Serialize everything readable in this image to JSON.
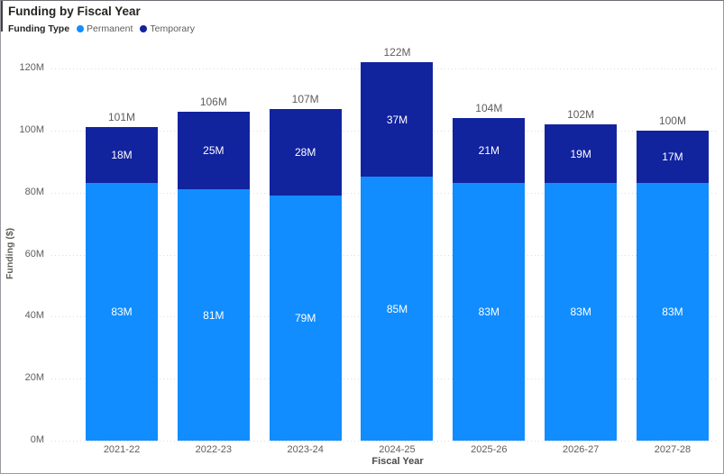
{
  "header": {
    "title": "Funding by Fiscal Year"
  },
  "legend": {
    "label": "Funding Type",
    "items": [
      {
        "name": "Permanent",
        "color": "#118DFF"
      },
      {
        "name": "Temporary",
        "color": "#12239E"
      }
    ]
  },
  "chart_data": {
    "type": "bar",
    "stacked": true,
    "title": "Funding by Fiscal Year",
    "xlabel": "Fiscal Year",
    "ylabel": "Funding ($)",
    "categories": [
      "2021-22",
      "2022-23",
      "2023-24",
      "2024-25",
      "2025-26",
      "2026-27",
      "2027-28"
    ],
    "series": [
      {
        "name": "Permanent",
        "color": "#118DFF",
        "values": [
          83,
          81,
          79,
          85,
          83,
          83,
          83
        ],
        "labels": [
          "83M",
          "81M",
          "79M",
          "85M",
          "83M",
          "83M",
          "83M"
        ]
      },
      {
        "name": "Temporary",
        "color": "#12239E",
        "values": [
          18,
          25,
          28,
          37,
          21,
          19,
          17
        ],
        "labels": [
          "18M",
          "25M",
          "28M",
          "37M",
          "21M",
          "19M",
          "17M"
        ]
      }
    ],
    "totals": [
      101,
      106,
      107,
      122,
      104,
      102,
      100
    ],
    "total_labels": [
      "101M",
      "106M",
      "107M",
      "122M",
      "104M",
      "102M",
      "100M"
    ],
    "y_ticks": [
      0,
      20,
      40,
      60,
      80,
      100,
      120
    ],
    "y_tick_labels": [
      "0M",
      "20M",
      "40M",
      "60M",
      "80M",
      "100M",
      "120M"
    ],
    "ylim": [
      0,
      120
    ],
    "grid": "dotted-horizontal",
    "legend_position": "top-left",
    "colors": {
      "grid": "#DCDCDC",
      "axis_text": "#605E5C",
      "title_text": "#252423",
      "bar_value_text": "#FFFFFF"
    }
  }
}
